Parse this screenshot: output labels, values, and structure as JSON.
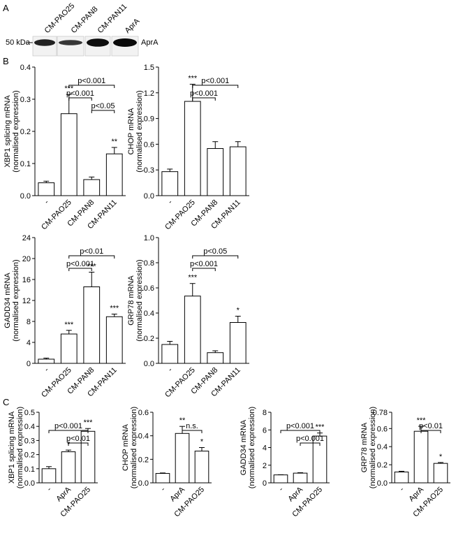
{
  "panel_labels": {
    "a": "A",
    "b": "B",
    "c": "C"
  },
  "blot": {
    "marker": "50 kDa",
    "protein": "AprA",
    "lanes": [
      "CM-PAO25",
      "CM-PAN8",
      "CM-PAN11",
      "AprA"
    ],
    "band_intensity": [
      0.7,
      0.45,
      0.95,
      1.0
    ]
  },
  "chart_data": [
    {
      "type": "bar",
      "panel": "B",
      "categories": [
        "-",
        "CM-PAO25",
        "CM-PAN8",
        "CM-PAN11"
      ],
      "values": [
        0.04,
        0.255,
        0.05,
        0.13
      ],
      "errors": [
        0.005,
        0.06,
        0.008,
        0.02
      ],
      "stars": [
        "",
        "***",
        "",
        "**"
      ],
      "ylabel": "XBP1 splicing mRNA",
      "ylabel2": "(normalised expression)",
      "ylim": [
        0,
        0.4
      ],
      "yticks": [
        "0.0",
        "0.1",
        "0.2",
        "0.3",
        "0.4"
      ],
      "brackets": [
        {
          "from": 1,
          "to": 3,
          "label": "p<0.001"
        },
        {
          "from": 1,
          "to": 2,
          "label": "p<0.001"
        },
        {
          "from": 2,
          "to": 3,
          "label": "p<0.05"
        }
      ]
    },
    {
      "type": "bar",
      "panel": "B",
      "categories": [
        "-",
        "CM-PAO25",
        "CM-PAN8",
        "CM-PAN11"
      ],
      "values": [
        0.28,
        1.1,
        0.55,
        0.57
      ],
      "errors": [
        0.03,
        0.2,
        0.08,
        0.06
      ],
      "stars": [
        "",
        "***",
        "",
        ""
      ],
      "ylabel": "CHOP mRNA",
      "ylabel2": "(normalised expression)",
      "ylim": [
        0,
        1.5
      ],
      "yticks": [
        "0.0",
        "0.3",
        "0.6",
        "0.9",
        "1.2",
        "1.5"
      ],
      "brackets": [
        {
          "from": 1,
          "to": 3,
          "label": "p<0.001"
        },
        {
          "from": 1,
          "to": 2,
          "label": "p<0.001"
        }
      ]
    },
    {
      "type": "bar",
      "panel": "B",
      "categories": [
        "-",
        "CM-PAO25",
        "CM-PAN8",
        "CM-PAN11"
      ],
      "values": [
        0.8,
        5.6,
        14.6,
        8.9
      ],
      "errors": [
        0.2,
        0.7,
        2.8,
        0.5
      ],
      "stars": [
        "",
        "***",
        "***",
        "***"
      ],
      "ylabel": "GADD34 mRNA",
      "ylabel2": "(normalised expression)",
      "ylim": [
        0,
        24
      ],
      "yticks": [
        "0",
        "4",
        "8",
        "12",
        "16",
        "20",
        "24"
      ],
      "brackets": [
        {
          "from": 1,
          "to": 3,
          "label": "p<0.01"
        },
        {
          "from": 1,
          "to": 2,
          "label": "p<0.001"
        }
      ]
    },
    {
      "type": "bar",
      "panel": "B",
      "categories": [
        "-",
        "CM-PAO25",
        "CM-PAN8",
        "CM-PAN11"
      ],
      "values": [
        0.15,
        0.535,
        0.085,
        0.325
      ],
      "errors": [
        0.025,
        0.1,
        0.015,
        0.05
      ],
      "stars": [
        "",
        "***",
        "",
        "*"
      ],
      "ylabel": "GRP78 mRNA",
      "ylabel2": "(normalised expression)",
      "ylim": [
        0,
        1.0
      ],
      "yticks": [
        "0.0",
        "0.2",
        "0.4",
        "0.6",
        "0.8",
        "1.0"
      ],
      "brackets": [
        {
          "from": 1,
          "to": 3,
          "label": "p<0.05"
        },
        {
          "from": 1,
          "to": 2,
          "label": "p<0.001"
        }
      ]
    },
    {
      "type": "bar",
      "panel": "C",
      "categories": [
        "-",
        "AprA",
        "CM-PAO25"
      ],
      "values": [
        0.1,
        0.22,
        0.365
      ],
      "errors": [
        0.015,
        0.012,
        0.02
      ],
      "stars": [
        "",
        "*",
        "***"
      ],
      "ylabel": "XBP1 splicing mRNA",
      "ylabel2": "(normalised expression)",
      "ylim": [
        0,
        0.5
      ],
      "yticks": [
        "0.0",
        "0.1",
        "0.2",
        "0.3",
        "0.4",
        "0.5"
      ],
      "brackets": [
        {
          "from": 0,
          "to": 2,
          "label": "p<0.001"
        },
        {
          "from": 1,
          "to": 2,
          "label": "p<0.01"
        }
      ]
    },
    {
      "type": "bar",
      "panel": "C",
      "categories": [
        "-",
        "AprA",
        "CM-PAO25"
      ],
      "values": [
        0.08,
        0.42,
        0.27
      ],
      "errors": [
        0.004,
        0.06,
        0.03
      ],
      "stars": [
        "",
        "**",
        "*"
      ],
      "ylabel": "CHOP mRNA",
      "ylabel2": "(normalised expression)",
      "ylim": [
        0,
        0.6
      ],
      "yticks": [
        "0.0",
        "0.2",
        "0.4",
        "0.6"
      ],
      "brackets": [
        {
          "from": 1,
          "to": 2,
          "label": "n.s."
        }
      ]
    },
    {
      "type": "bar",
      "panel": "C",
      "categories": [
        "-",
        "AprA",
        "CM-PAO25"
      ],
      "values": [
        0.9,
        1.1,
        5.3
      ],
      "errors": [
        0.02,
        0.05,
        0.35
      ],
      "stars": [
        "",
        "",
        "***"
      ],
      "ylabel": "GADD34 mRNA",
      "ylabel2": "(normalised expression)",
      "ylim": [
        0,
        8
      ],
      "yticks": [
        "0",
        "2",
        "4",
        "6",
        "8"
      ],
      "brackets": [
        {
          "from": 0,
          "to": 2,
          "label": "p<0.001"
        },
        {
          "from": 1,
          "to": 2,
          "label": "p<0.001"
        }
      ]
    },
    {
      "type": "bar",
      "panel": "C",
      "categories": [
        "-",
        "AprA",
        "CM-PAO25"
      ],
      "values": [
        0.12,
        0.57,
        0.215
      ],
      "errors": [
        0.008,
        0.055,
        0.01
      ],
      "stars": [
        "",
        "***",
        "*"
      ],
      "ylabel": "GRP78 mRNA",
      "ylabel2": "(normalised expression)",
      "ylim": [
        0,
        0.78
      ],
      "yticks": [
        "0.0",
        "0.2",
        "0.4",
        "0.6",
        "0.78"
      ],
      "brackets": [
        {
          "from": 1,
          "to": 2,
          "label": "p<0.01"
        }
      ]
    }
  ]
}
